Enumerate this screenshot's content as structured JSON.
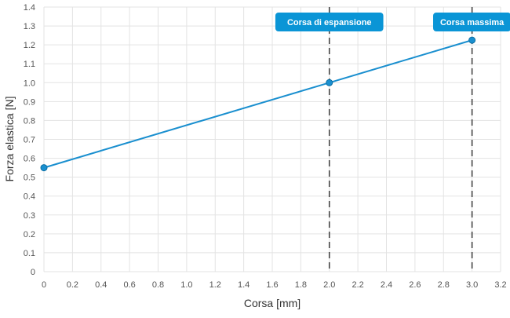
{
  "chart_data": {
    "type": "line",
    "xlabel": "Corsa [mm]",
    "ylabel": "Forza elastica [N]",
    "xlim": [
      0,
      3.2
    ],
    "ylim": [
      0,
      1.4
    ],
    "x_ticks": [
      "0",
      "0.2",
      "0.4",
      "0.6",
      "0.8",
      "1.0",
      "1.2",
      "1.4",
      "1.6",
      "1.8",
      "2.0",
      "2.2",
      "2.4",
      "2.6",
      "2.8",
      "3.0",
      "3.2"
    ],
    "y_ticks": [
      "0",
      "0.1",
      "0.2",
      "0.3",
      "0.4",
      "0.5",
      "0.6",
      "0.7",
      "0.8",
      "0.9",
      "1.0",
      "1.1",
      "1.2",
      "1.3",
      "1.4"
    ],
    "grid": true,
    "series": [
      {
        "points": [
          {
            "x": 0,
            "y": 0.55
          },
          {
            "x": 2.0,
            "y": 1.0
          },
          {
            "x": 3.0,
            "y": 1.225
          }
        ]
      }
    ],
    "markers": [
      {
        "x": 2.0,
        "label": "Corsa di espansione"
      },
      {
        "x": 3.0,
        "label": "Corsa massima"
      }
    ]
  },
  "colors": {
    "line": "#1a8fcf",
    "marker_label_bg": "#0a95d6",
    "marker_line": "#444444",
    "grid": "#e3e3e3",
    "axis_text": "#555555",
    "label_text": "#333333"
  }
}
